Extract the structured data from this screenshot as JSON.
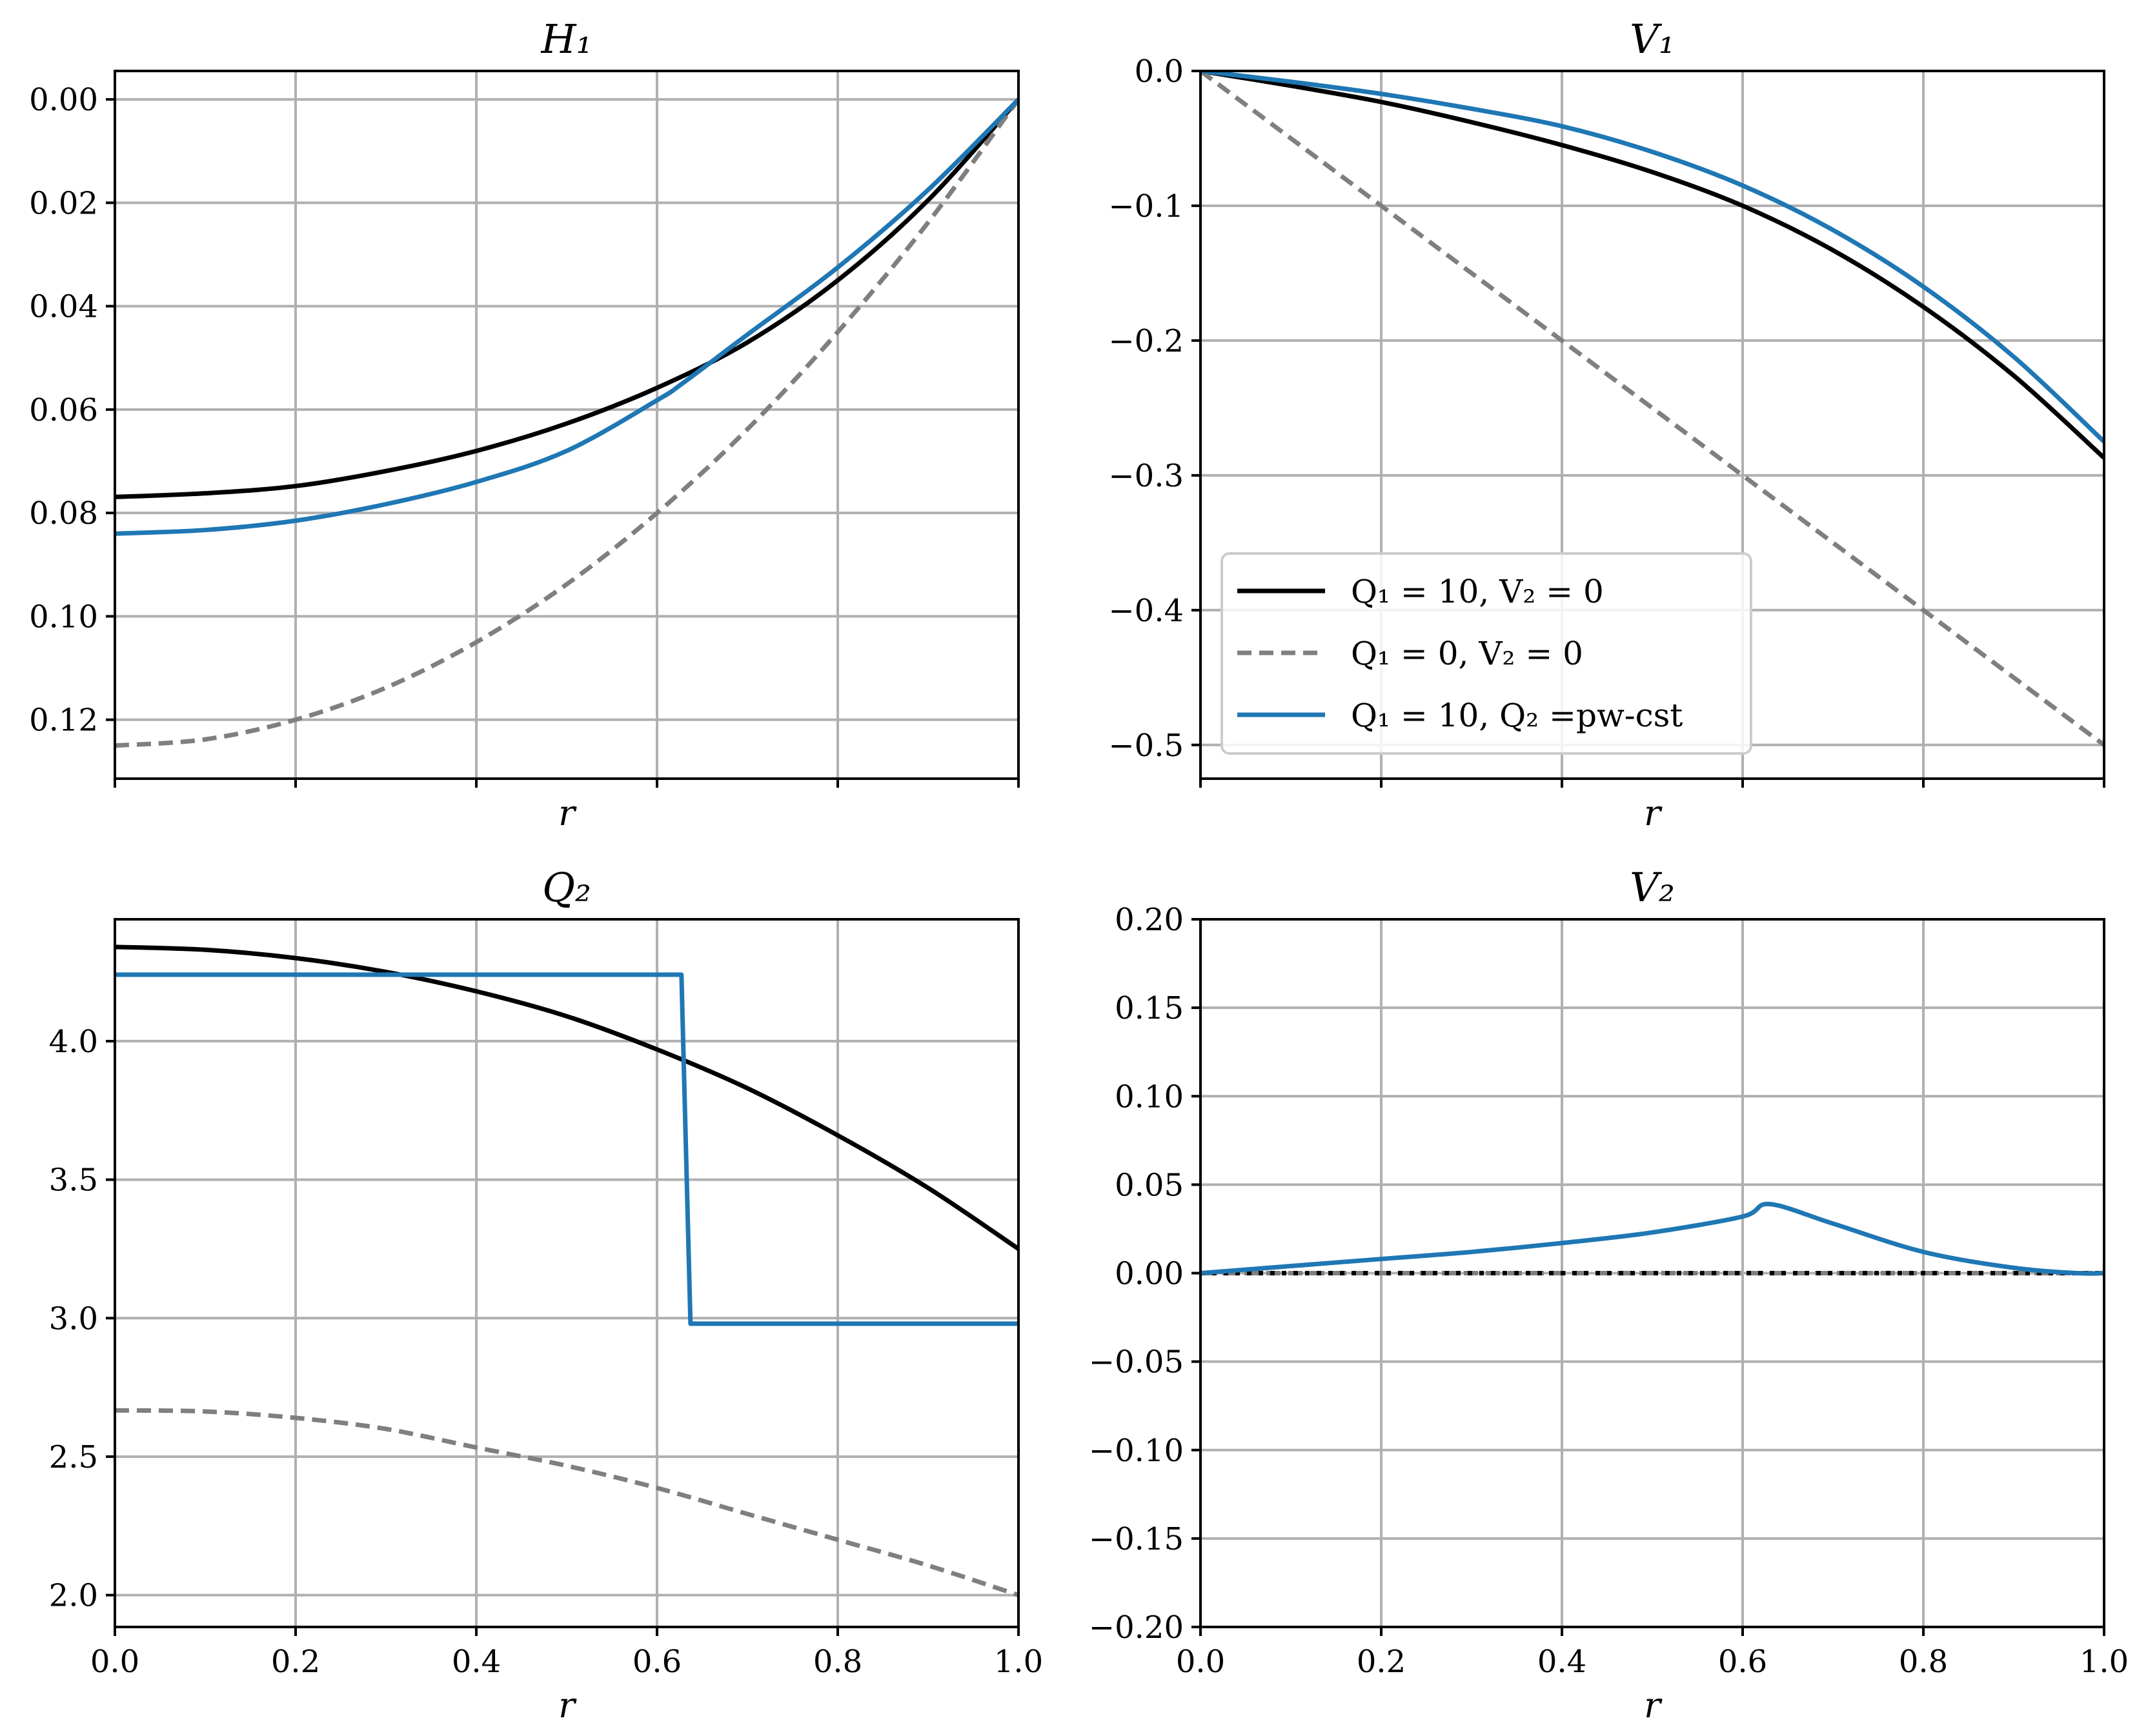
{
  "colors": {
    "black": "#000000",
    "gray": "#7f7f7f",
    "blue": "#1f77b4",
    "grid": "#b0b0b0"
  },
  "legend": {
    "panel": 1,
    "entries": [
      {
        "series": 0,
        "label": "Q₁ = 10, V₂ = 0"
      },
      {
        "series": 1,
        "label": "Q₁ = 0, V₂ = 0"
      },
      {
        "series": 2,
        "label": "Q₁ = 10, Q₂ =pw-cst"
      }
    ]
  },
  "chart_data": [
    {
      "type": "line",
      "title": "H₁",
      "xlabel": "r",
      "ylabel": "",
      "xlim": [
        0,
        1
      ],
      "ylim": [
        0.1314,
        -0.0055
      ],
      "y_inverted": true,
      "show_x_ticklabels": false,
      "xticks": [
        0,
        0.2,
        0.4,
        0.6,
        0.8,
        1.0
      ],
      "yticks": [
        0.0,
        0.02,
        0.04,
        0.06,
        0.08,
        0.1,
        0.12
      ],
      "ytick_labels": [
        "0.00",
        "0.02",
        "0.04",
        "0.06",
        "0.08",
        "0.10",
        "0.12"
      ],
      "grid": true,
      "series": [
        {
          "name": "Q₁ = 10, V₂ = 0",
          "color": "#000000",
          "dash": "solid",
          "x": [
            0,
            0.1,
            0.2,
            0.3,
            0.4,
            0.5,
            0.6,
            0.7,
            0.8,
            0.9,
            1.0
          ],
          "y": [
            0.0769,
            0.0762,
            0.0748,
            0.0719,
            0.068,
            0.0627,
            0.0558,
            0.047,
            0.035,
            0.0195,
            0.0
          ]
        },
        {
          "name": "Q₁ = 0, V₂ = 0",
          "color": "#7f7f7f",
          "dash": "dashed",
          "x": [
            0,
            0.1,
            0.2,
            0.3,
            0.4,
            0.5,
            0.6,
            0.7,
            0.8,
            0.9,
            1.0
          ],
          "y": [
            0.125,
            0.1238,
            0.12,
            0.1138,
            0.105,
            0.0938,
            0.08,
            0.0638,
            0.045,
            0.0238,
            0.0
          ]
        },
        {
          "name": "Q₁ = 10, Q₂ =pw-cst",
          "color": "#1f77b4",
          "dash": "solid",
          "x": [
            0,
            0.1,
            0.2,
            0.3,
            0.4,
            0.5,
            0.6,
            0.63,
            0.7,
            0.8,
            0.9,
            1.0
          ],
          "y": [
            0.084,
            0.0833,
            0.0815,
            0.0783,
            0.074,
            0.068,
            0.0582,
            0.0547,
            0.0455,
            0.0325,
            0.0175,
            0.0
          ]
        }
      ]
    },
    {
      "type": "line",
      "title": "V₁",
      "xlabel": "r",
      "ylabel": "",
      "xlim": [
        0,
        1
      ],
      "ylim": [
        -0.525,
        0.0
      ],
      "show_x_ticklabels": false,
      "xticks": [
        0,
        0.2,
        0.4,
        0.6,
        0.8,
        1.0
      ],
      "yticks": [
        0.0,
        -0.1,
        -0.2,
        -0.3,
        -0.4,
        -0.5
      ],
      "ytick_labels": [
        "0.0",
        "−0.1",
        "−0.2",
        "−0.3",
        "−0.4",
        "−0.5"
      ],
      "grid": true,
      "legend_position": "lower-left",
      "series": [
        {
          "name": "Q₁ = 10, V₂ = 0",
          "color": "#000000",
          "dash": "solid",
          "x": [
            0,
            0.1,
            0.2,
            0.3,
            0.4,
            0.5,
            0.6,
            0.7,
            0.8,
            0.9,
            1.0
          ],
          "y": [
            0.0,
            -0.011,
            -0.023,
            -0.038,
            -0.055,
            -0.075,
            -0.1,
            -0.133,
            -0.175,
            -0.226,
            -0.287
          ]
        },
        {
          "name": "Q₁ = 0, V₂ = 0",
          "color": "#7f7f7f",
          "dash": "dashed",
          "x": [
            0,
            1.0
          ],
          "y": [
            0.0,
            -0.5
          ]
        },
        {
          "name": "Q₁ = 10, Q₂ =pw-cst",
          "color": "#1f77b4",
          "dash": "solid",
          "x": [
            0,
            0.1,
            0.2,
            0.3,
            0.4,
            0.5,
            0.6,
            0.7,
            0.8,
            0.9,
            1.0
          ],
          "y": [
            0.0,
            -0.008,
            -0.017,
            -0.028,
            -0.041,
            -0.06,
            -0.085,
            -0.118,
            -0.16,
            -0.212,
            -0.275
          ]
        }
      ]
    },
    {
      "type": "line",
      "title": "Q₂",
      "xlabel": "r",
      "ylabel": "",
      "xlim": [
        0,
        1
      ],
      "ylim": [
        1.885,
        4.44
      ],
      "show_x_ticklabels": true,
      "xticks": [
        0,
        0.2,
        0.4,
        0.6,
        0.8,
        1.0
      ],
      "xtick_labels": [
        "0.0",
        "0.2",
        "0.4",
        "0.6",
        "0.8",
        "1.0"
      ],
      "yticks": [
        2.0,
        2.5,
        3.0,
        3.5,
        4.0
      ],
      "ytick_labels": [
        "2.0",
        "2.5",
        "3.0",
        "3.5",
        "4.0"
      ],
      "grid": true,
      "series": [
        {
          "name": "Q₁ = 10, V₂ = 0",
          "color": "#000000",
          "dash": "solid",
          "x": [
            0,
            0.1,
            0.2,
            0.3,
            0.4,
            0.5,
            0.6,
            0.7,
            0.8,
            0.9,
            1.0
          ],
          "y": [
            4.34,
            4.33,
            4.3,
            4.25,
            4.18,
            4.09,
            3.97,
            3.83,
            3.66,
            3.47,
            3.25
          ]
        },
        {
          "name": "Q₁ = 0, V₂ = 0",
          "color": "#7f7f7f",
          "dash": "dashed",
          "x": [
            0,
            0.1,
            0.2,
            0.3,
            0.4,
            0.5,
            0.6,
            0.7,
            0.8,
            0.9,
            1.0
          ],
          "y": [
            2.667,
            2.663,
            2.64,
            2.6,
            2.533,
            2.467,
            2.387,
            2.293,
            2.2,
            2.107,
            2.0
          ]
        },
        {
          "name": "Q₁ = 10, Q₂ =pw-cst",
          "color": "#1f77b4",
          "dash": "solid",
          "x": [
            0,
            0.627,
            0.637,
            1.0
          ],
          "y": [
            4.24,
            4.24,
            2.98,
            2.98
          ]
        }
      ]
    },
    {
      "type": "line",
      "title": "V₂",
      "xlabel": "r",
      "ylabel": "",
      "xlim": [
        0,
        1
      ],
      "ylim": [
        -0.2,
        0.2
      ],
      "show_x_ticklabels": true,
      "xticks": [
        0,
        0.2,
        0.4,
        0.6,
        0.8,
        1.0
      ],
      "xtick_labels": [
        "0.0",
        "0.2",
        "0.4",
        "0.6",
        "0.8",
        "1.0"
      ],
      "yticks": [
        -0.2,
        -0.15,
        -0.1,
        -0.05,
        0.0,
        0.05,
        0.1,
        0.15,
        0.2
      ],
      "ytick_labels": [
        "−0.20",
        "−0.15",
        "−0.10",
        "−0.05",
        "0.00",
        "0.05",
        "0.10",
        "0.15",
        "0.20"
      ],
      "grid": true,
      "series": [
        {
          "name": "Q₁ = 0, V₂ = 0",
          "color": "#7f7f7f",
          "dash": "dashed",
          "x": [
            0,
            1.0
          ],
          "y": [
            0.0,
            0.0
          ]
        },
        {
          "name": "Q₁ = 10, V₂ = 0",
          "color": "#000000",
          "dash": "dotted",
          "x": [
            0,
            1.0
          ],
          "y": [
            0.0,
            0.0
          ]
        },
        {
          "name": "Q₁ = 10, Q₂ =pw-cst",
          "color": "#1f77b4",
          "dash": "solid",
          "x": [
            0,
            0.1,
            0.2,
            0.3,
            0.4,
            0.5,
            0.6,
            0.63,
            0.7,
            0.8,
            0.9,
            0.97,
            1.0
          ],
          "y": [
            0.0,
            0.004,
            0.008,
            0.012,
            0.017,
            0.023,
            0.032,
            0.039,
            0.028,
            0.012,
            0.003,
            0.0,
            0.0
          ]
        }
      ]
    }
  ]
}
